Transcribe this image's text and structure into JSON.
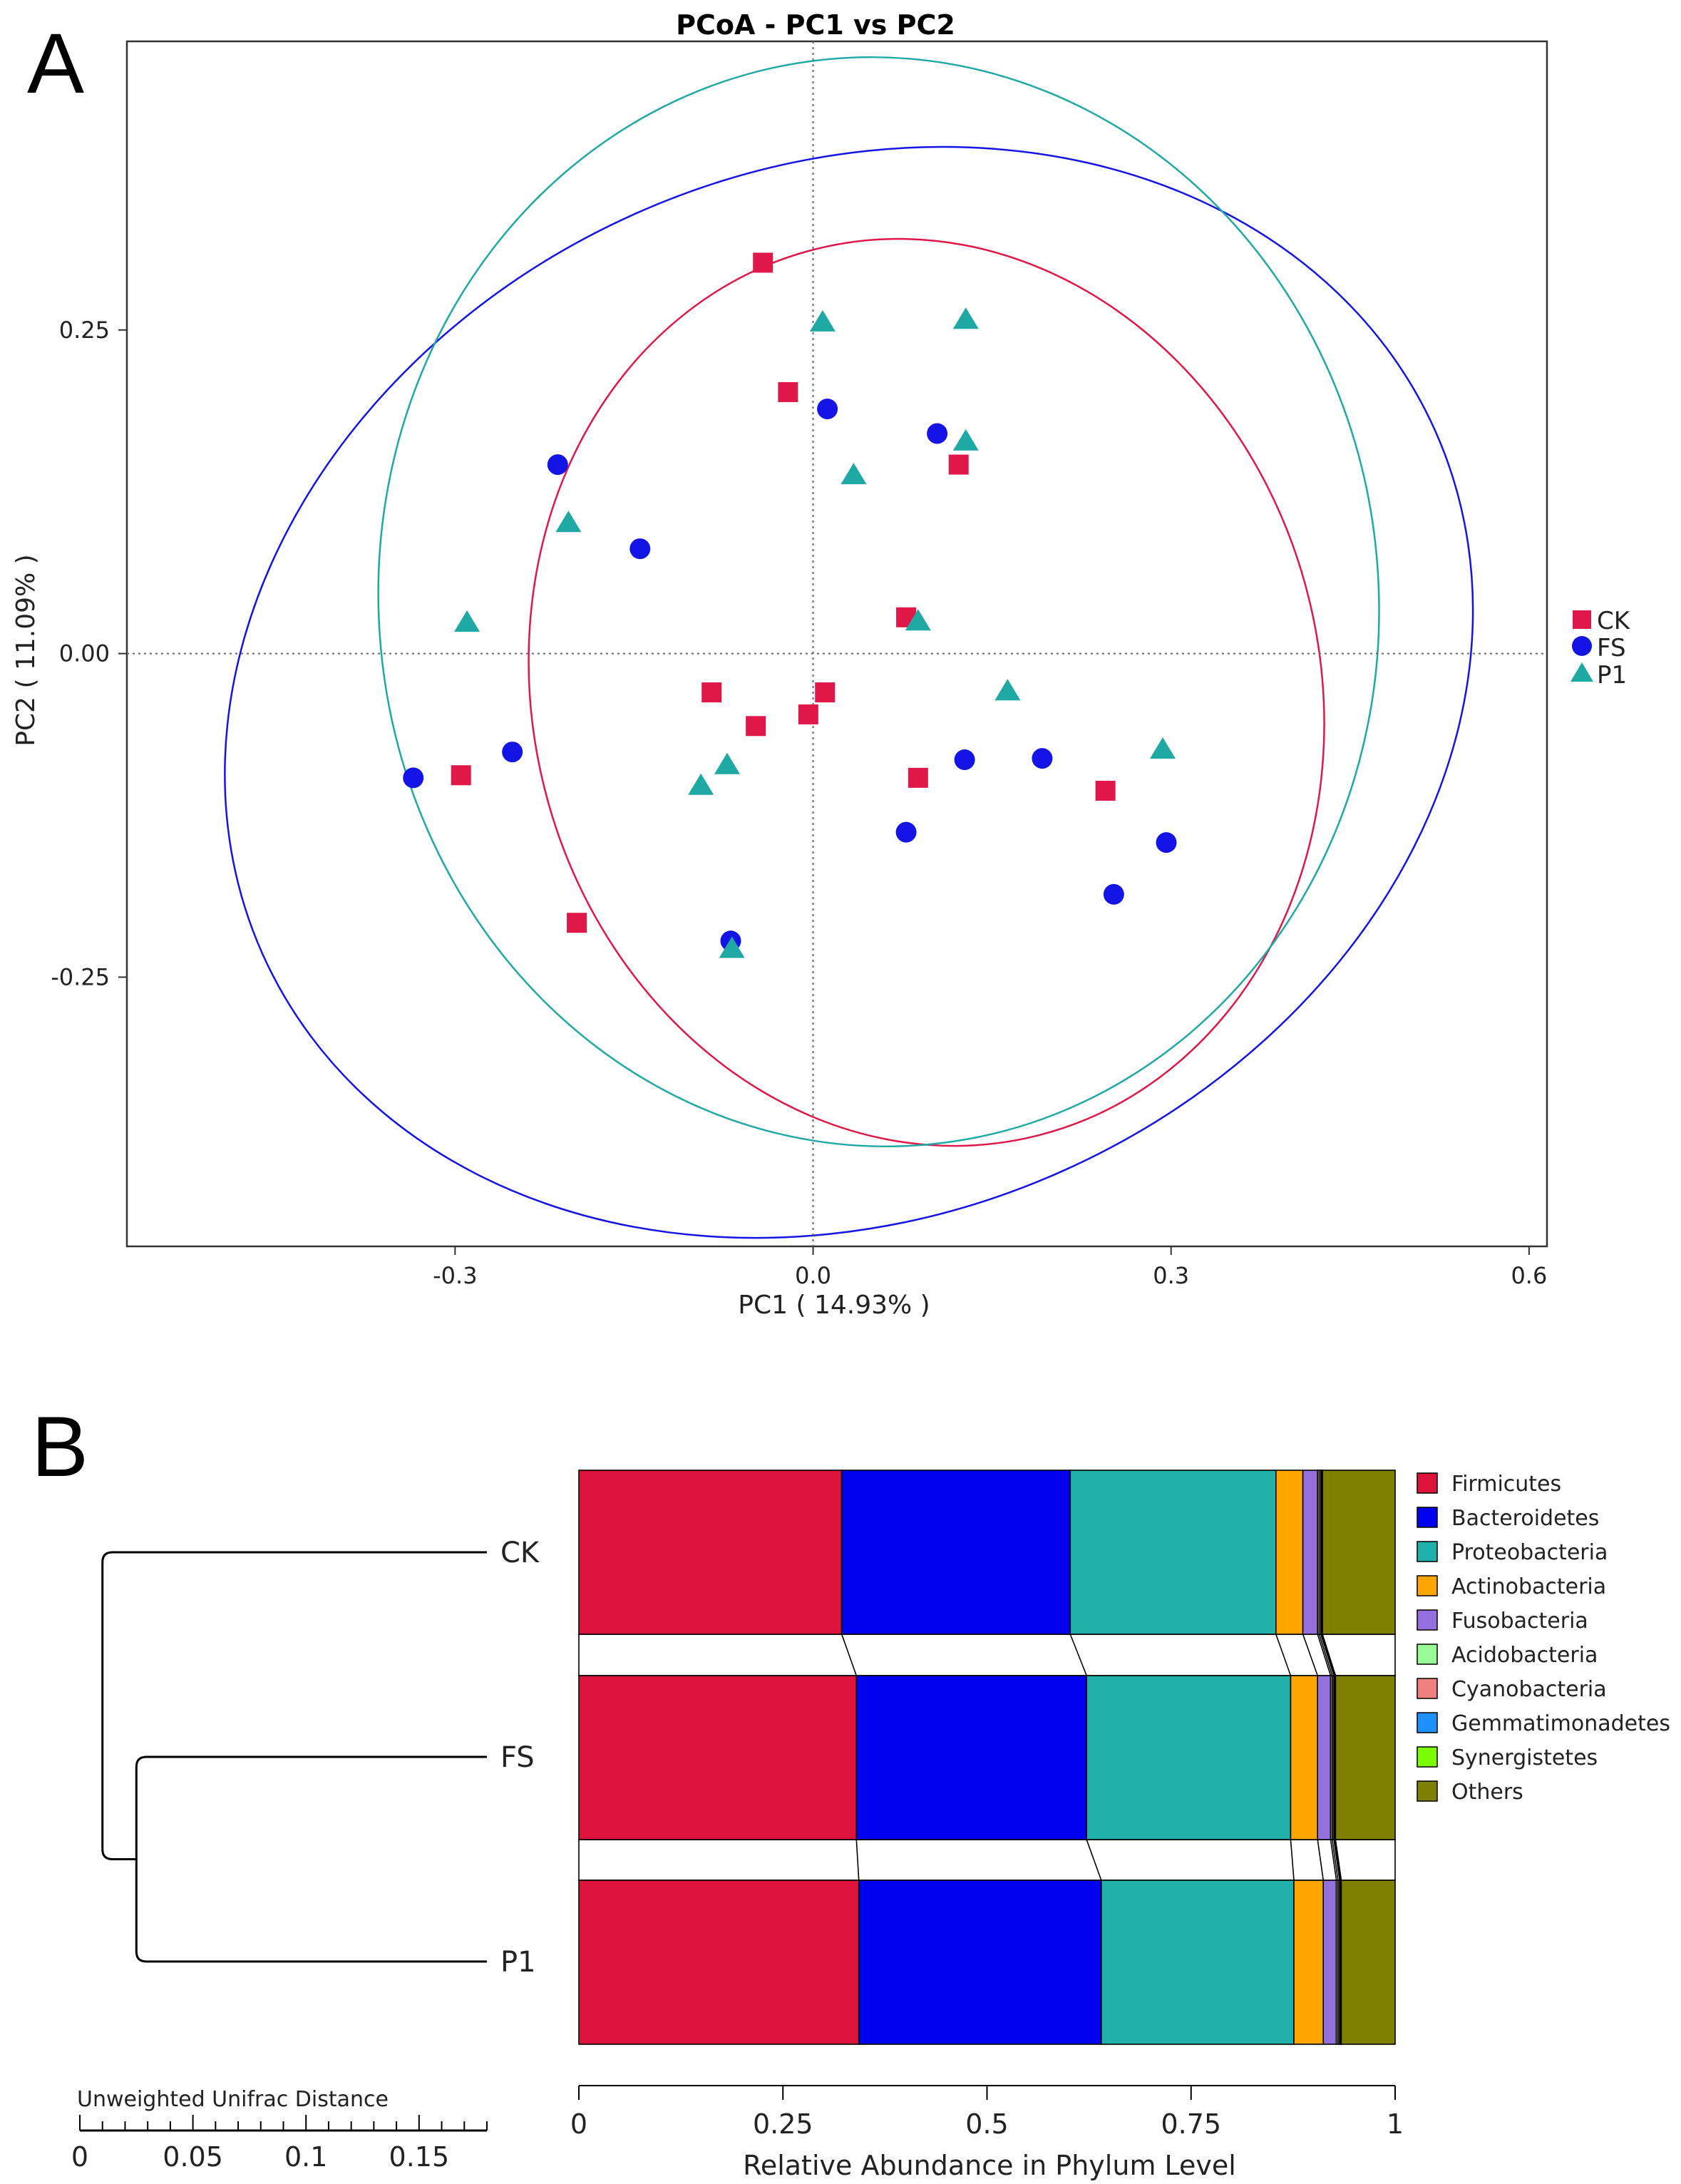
{
  "panel_a": {
    "label": "A",
    "chart_data": {
      "type": "scatter",
      "title": "PCoA - PC1 vs PC2",
      "xlabel": "PC1 ( 14.93% )",
      "ylabel": "PC2 ( 11.09% )",
      "xlim": [
        -0.575,
        0.615
      ],
      "ylim": [
        -0.458,
        0.473
      ],
      "xticks": [
        -0.3,
        0.0,
        0.3,
        0.6
      ],
      "xtick_labels": [
        "-0.3",
        "0.0",
        "0.3",
        "0.6"
      ],
      "yticks": [
        0.25,
        0.0,
        -0.25
      ],
      "ytick_labels": [
        "0.25",
        "0.00",
        "-0.25"
      ],
      "legend_position": "right",
      "series": [
        {
          "name": "CK",
          "marker": "square",
          "color": "#e0184a",
          "points": [
            [
              -0.042,
              0.302
            ],
            [
              -0.021,
              0.202
            ],
            [
              0.122,
              0.146
            ],
            [
              0.078,
              0.028
            ],
            [
              -0.085,
              -0.03
            ],
            [
              0.01,
              -0.03
            ],
            [
              -0.048,
              -0.056
            ],
            [
              -0.004,
              -0.047
            ],
            [
              -0.295,
              -0.094
            ],
            [
              0.088,
              -0.096
            ],
            [
              0.245,
              -0.106
            ],
            [
              -0.198,
              -0.208
            ]
          ]
        },
        {
          "name": "FS",
          "marker": "circle",
          "color": "#1414e6",
          "points": [
            [
              0.012,
              0.189
            ],
            [
              0.104,
              0.17
            ],
            [
              -0.214,
              0.146
            ],
            [
              -0.145,
              0.081
            ],
            [
              -0.335,
              -0.096
            ],
            [
              -0.252,
              -0.076
            ],
            [
              0.127,
              -0.082
            ],
            [
              0.192,
              -0.081
            ],
            [
              0.078,
              -0.138
            ],
            [
              0.296,
              -0.146
            ],
            [
              0.252,
              -0.186
            ],
            [
              -0.069,
              -0.222
            ]
          ]
        },
        {
          "name": "P1",
          "marker": "triangle",
          "color": "#1fa9a5",
          "points": [
            [
              0.008,
              0.256
            ],
            [
              0.128,
              0.258
            ],
            [
              0.128,
              0.164
            ],
            [
              0.034,
              0.138
            ],
            [
              -0.205,
              0.101
            ],
            [
              -0.29,
              0.024
            ],
            [
              0.088,
              0.025
            ],
            [
              0.163,
              -0.029
            ],
            [
              -0.072,
              -0.086
            ],
            [
              -0.094,
              -0.102
            ],
            [
              0.293,
              -0.074
            ],
            [
              -0.068,
              -0.228
            ]
          ]
        }
      ],
      "ellipses": [
        {
          "group": "CK",
          "color": "#e0184a",
          "cx": 0.095,
          "cy": -0.03,
          "rx": 0.33,
          "ry": 0.353,
          "angle_deg": -14
        },
        {
          "group": "FS",
          "color": "#1414e6",
          "cx": 0.03,
          "cy": -0.03,
          "rx": 0.538,
          "ry": 0.405,
          "angle_deg": -24
        },
        {
          "group": "P1",
          "color": "#1fa9a5",
          "cx": 0.055,
          "cy": 0.04,
          "rx": 0.419,
          "ry": 0.421,
          "angle_deg": -5
        }
      ]
    }
  },
  "panel_b": {
    "label": "B",
    "chart_data": {
      "type": "bar",
      "orientation": "horizontal",
      "stacked": true,
      "xlabel": "Relative Abundance in Phylum Level",
      "xlim": [
        0,
        1
      ],
      "xticks": [
        0,
        0.25,
        0.5,
        0.75,
        1
      ],
      "xtick_labels": [
        "0",
        "0.25",
        "0.5",
        "0.75",
        "1"
      ],
      "categories": [
        "CK",
        "FS",
        "P1"
      ],
      "legend_position": "right",
      "series": [
        {
          "name": "Firmicutes",
          "color": "#dc143c",
          "values": [
            0.322,
            0.34,
            0.343
          ]
        },
        {
          "name": "Bacteroidetes",
          "color": "#0000ee",
          "values": [
            0.28,
            0.282,
            0.297
          ]
        },
        {
          "name": "Proteobacteria",
          "color": "#20b2aa",
          "values": [
            0.252,
            0.25,
            0.236
          ]
        },
        {
          "name": "Actinobacteria",
          "color": "#ffa500",
          "values": [
            0.033,
            0.033,
            0.036
          ]
        },
        {
          "name": "Fusobacteria",
          "color": "#9370db",
          "values": [
            0.018,
            0.016,
            0.016
          ]
        },
        {
          "name": "Acidobacteria",
          "color": "#98fb98",
          "values": [
            0.002,
            0.002,
            0.002
          ]
        },
        {
          "name": "Cyanobacteria",
          "color": "#f08080",
          "values": [
            0.002,
            0.002,
            0.002
          ]
        },
        {
          "name": "Gemmatimonadetes",
          "color": "#1e90ff",
          "values": [
            0.001,
            0.001,
            0.001
          ]
        },
        {
          "name": "Synergistetes",
          "color": "#7cfc00",
          "values": [
            0.001,
            0.001,
            0.001
          ]
        },
        {
          "name": "Others",
          "color": "#808000",
          "values": [
            0.089,
            0.073,
            0.066
          ]
        }
      ]
    },
    "dendrogram": {
      "scale_label": "Unweighted Unifrac Distance",
      "scale_ticks": [
        0,
        0.05,
        0.1,
        0.15
      ],
      "scale_tick_labels": [
        "0",
        "0.05",
        "0.1",
        "0.15"
      ],
      "scale_max": 0.18,
      "leaves": [
        "CK",
        "FS",
        "P1"
      ],
      "merges": [
        {
          "left": "FS",
          "right": "P1",
          "height": 0.155
        },
        {
          "left": "CK",
          "right": "FS+P1",
          "height": 0.17
        }
      ]
    }
  }
}
